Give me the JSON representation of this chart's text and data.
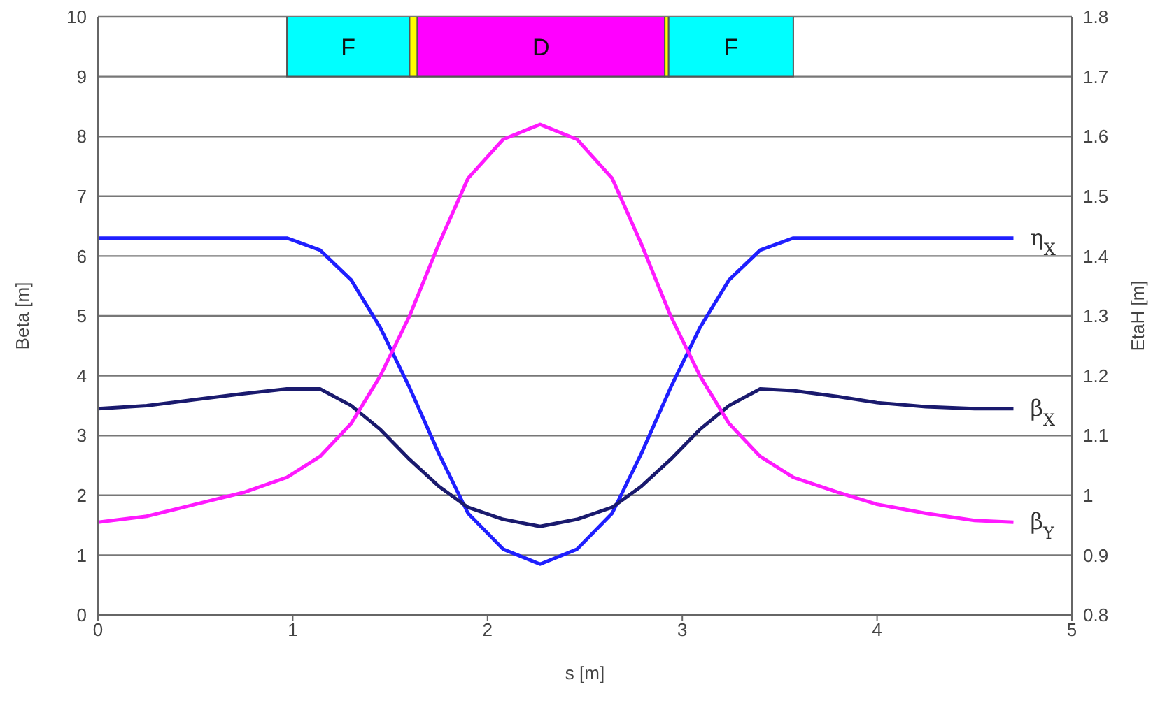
{
  "chart_data": {
    "type": "line",
    "xlabel": "s [m]",
    "ylabel": "Beta [m]",
    "y2label": "EtaH [m]",
    "x": [
      0,
      0.25,
      0.5,
      0.75,
      0.97,
      1.14,
      1.3,
      1.45,
      1.6,
      1.75,
      1.9,
      2.08,
      2.27,
      2.46,
      2.64,
      2.79,
      2.94,
      3.09,
      3.24,
      3.4,
      3.57,
      3.8,
      4.0,
      4.25,
      4.5,
      4.7
    ],
    "series": [
      {
        "name": "η$_{X}$",
        "color": "#1f1fff",
        "axis": "y2",
        "values": [
          1.43,
          1.43,
          1.43,
          1.43,
          1.43,
          1.41,
          1.36,
          1.28,
          1.18,
          1.07,
          0.97,
          0.91,
          0.885,
          0.91,
          0.97,
          1.07,
          1.18,
          1.28,
          1.36,
          1.41,
          1.43,
          1.43,
          1.43,
          1.43,
          1.43,
          1.43
        ]
      },
      {
        "name": "β$_{X}$",
        "color": "#1a1a6e",
        "values": [
          3.45,
          3.5,
          3.6,
          3.7,
          3.78,
          3.78,
          3.5,
          3.1,
          2.6,
          2.15,
          1.8,
          1.6,
          1.48,
          1.6,
          1.8,
          2.15,
          2.6,
          3.1,
          3.5,
          3.78,
          3.75,
          3.65,
          3.55,
          3.48,
          3.45,
          3.45
        ]
      },
      {
        "name": "β$_{Y}$",
        "color": "#ff1aff",
        "values": [
          1.55,
          1.65,
          1.85,
          2.05,
          2.3,
          2.65,
          3.2,
          4.0,
          5.0,
          6.2,
          7.3,
          7.95,
          8.2,
          7.95,
          7.3,
          6.2,
          5.0,
          4.0,
          3.2,
          2.65,
          2.3,
          2.05,
          1.85,
          1.7,
          1.58,
          1.55
        ]
      }
    ],
    "xlim": [
      0,
      5
    ],
    "xticks": [
      0,
      1,
      2,
      3,
      4,
      5
    ],
    "ylim": [
      0,
      10
    ],
    "yticks": [
      0,
      1,
      2,
      3,
      4,
      5,
      6,
      7,
      8,
      9,
      10
    ],
    "y2lim": [
      0.8,
      1.8
    ],
    "y2ticks": [
      0.8,
      0.9,
      1,
      1.1,
      1.2,
      1.3,
      1.4,
      1.5,
      1.6,
      1.7,
      1.8
    ],
    "grid": "y",
    "bands": [
      {
        "axis": "x",
        "from": 0.97,
        "to": 1.6,
        "label": "F",
        "color": "#00ffff"
      },
      {
        "axis": "x",
        "from": 1.6,
        "to": 1.64,
        "label": null,
        "color": "#ffff00"
      },
      {
        "axis": "x",
        "from": 1.64,
        "to": 2.91,
        "label": "D",
        "color": "#ff00ff"
      },
      {
        "axis": "x",
        "from": 2.91,
        "to": 2.93,
        "label": null,
        "color": "#ffff00"
      },
      {
        "axis": "x",
        "from": 2.93,
        "to": 3.57,
        "label": "F",
        "color": "#00ffff"
      }
    ]
  }
}
